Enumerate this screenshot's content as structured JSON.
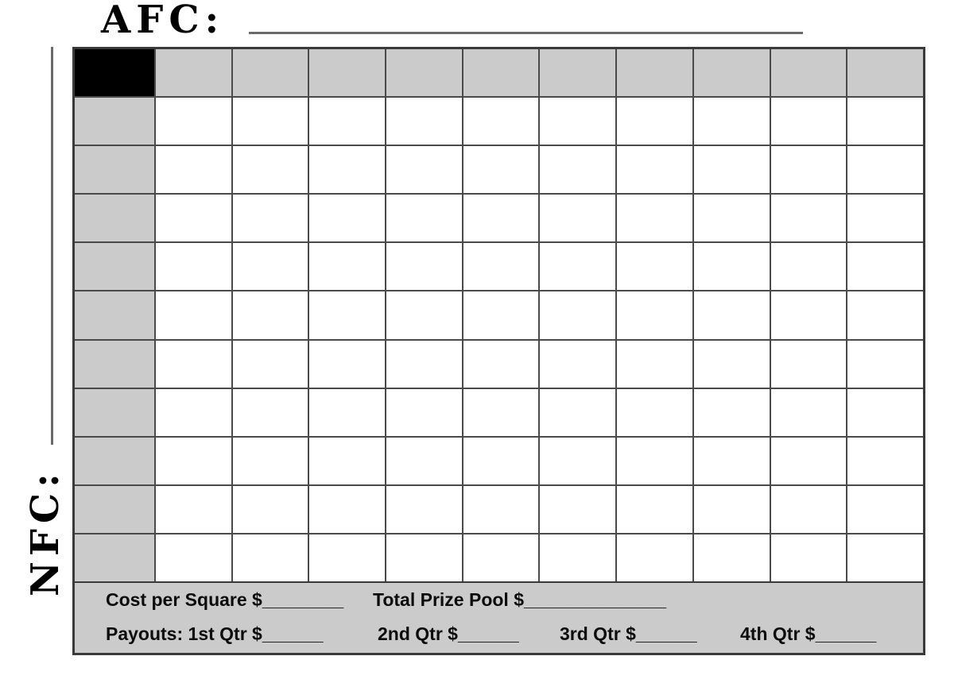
{
  "titles": {
    "afc_label": "AFC:",
    "nfc_label": "NFC:"
  },
  "grid": {
    "rows": 11,
    "cols": 11,
    "header_row": "AFC numbers row",
    "header_col": "NFC numbers column"
  },
  "footer": {
    "cost_per_square": "Cost per Square $________",
    "total_prize_pool": "Total Prize Pool $______________",
    "payouts_q1": "Payouts: 1st Qtr $______",
    "payouts_q2": "2nd Qtr $______",
    "payouts_q3": "3rd Qtr $______",
    "payouts_q4": "4th Qtr $______"
  },
  "colors": {
    "header_fill": "#cbcbcb",
    "corner_fill": "#000000",
    "square_fill": "#ffffff",
    "grid_line": "#4a4a4a",
    "outer_line": "#3a3a3a",
    "blank_line": "#6a6a6a",
    "text_color": "#0c0c0c",
    "page_bg": "#ffffff"
  }
}
